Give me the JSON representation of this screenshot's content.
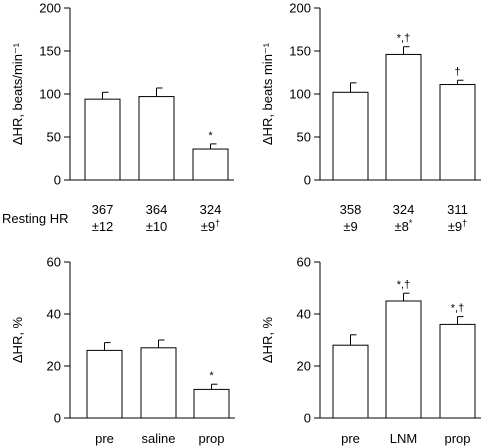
{
  "resting_hr_label": "Resting HR",
  "chart_data": [
    {
      "type": "bar",
      "ylabel": "ΔHR, beats/min⁻¹",
      "ylim": [
        0,
        200
      ],
      "yticks": [
        0,
        50,
        100,
        150,
        200
      ],
      "categories": [
        "",
        "",
        ""
      ],
      "values": [
        94,
        97,
        36
      ],
      "errors": [
        8,
        10,
        6
      ],
      "annotations": [
        "",
        "",
        "*"
      ],
      "resting_hr": [
        {
          "value": "367",
          "sd": "±12",
          "mark": ""
        },
        {
          "value": "364",
          "sd": "±10",
          "mark": ""
        },
        {
          "value": "324",
          "sd": "±9",
          "mark": "†"
        }
      ]
    },
    {
      "type": "bar",
      "ylabel": "ΔHR, beats min⁻¹",
      "ylim": [
        0,
        200
      ],
      "yticks": [
        0,
        50,
        100,
        150,
        200
      ],
      "categories": [
        "",
        "",
        ""
      ],
      "values": [
        102,
        146,
        111
      ],
      "errors": [
        11,
        9,
        5
      ],
      "annotations": [
        "",
        "*,†",
        "†"
      ],
      "resting_hr": [
        {
          "value": "358",
          "sd": "±9",
          "mark": ""
        },
        {
          "value": "324",
          "sd": "±8",
          "mark": "*"
        },
        {
          "value": "311",
          "sd": "±9",
          "mark": "†"
        }
      ]
    },
    {
      "type": "bar",
      "ylabel": "ΔHR, %",
      "ylim": [
        0,
        60
      ],
      "yticks": [
        0,
        20,
        40,
        60
      ],
      "categories": [
        "pre",
        "saline",
        "prop"
      ],
      "values": [
        26,
        27,
        11
      ],
      "errors": [
        3,
        3,
        2
      ],
      "annotations": [
        "",
        "",
        "*"
      ]
    },
    {
      "type": "bar",
      "ylabel": "ΔHR, %",
      "ylim": [
        0,
        60
      ],
      "yticks": [
        0,
        20,
        40,
        60
      ],
      "categories": [
        "pre",
        "LNM",
        "prop"
      ],
      "values": [
        28,
        45,
        36
      ],
      "errors": [
        4,
        3,
        3
      ],
      "annotations": [
        "",
        "*,†",
        "*,†"
      ]
    }
  ]
}
